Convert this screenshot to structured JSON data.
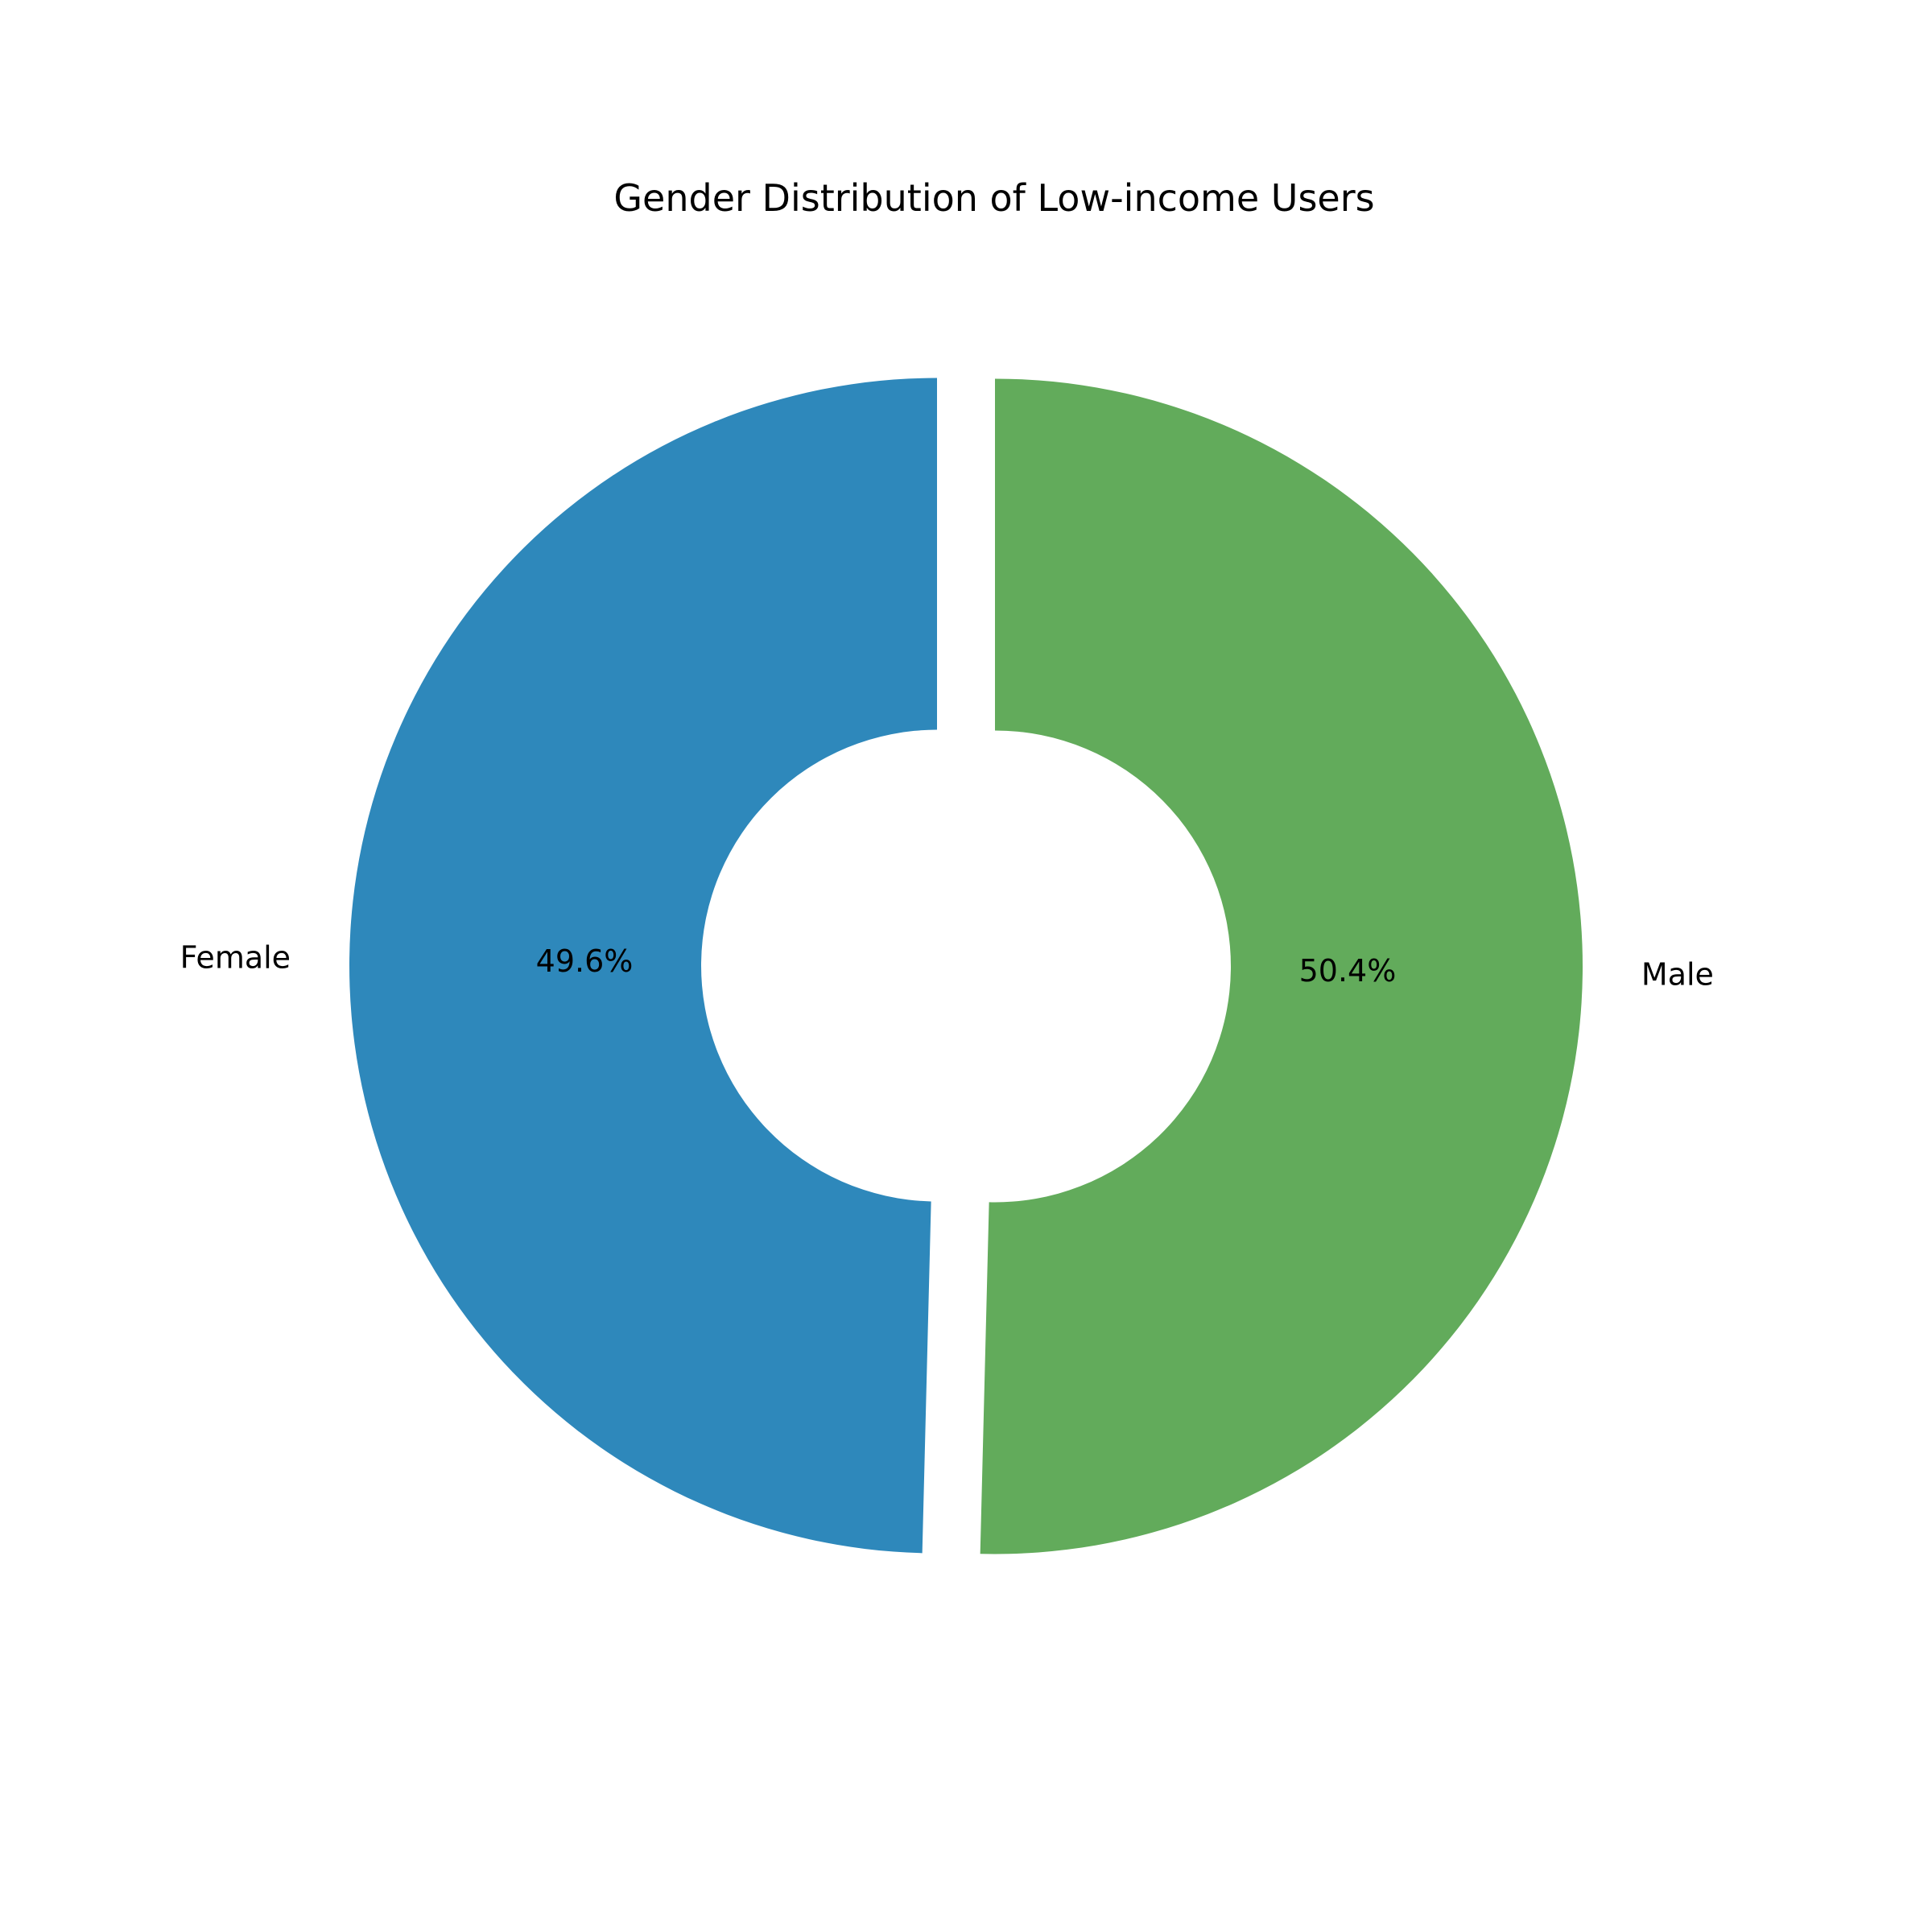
{
  "chart_data": {
    "type": "pie",
    "style": "donut",
    "title": "Gender Distribution of Low-income Users",
    "slices": [
      {
        "label": "Female",
        "percent": 49.6,
        "percent_label": "49.6%",
        "color": "#2e88bb"
      },
      {
        "label": "Male",
        "percent": 50.4,
        "percent_label": "50.4%",
        "color": "#62ab5b"
      }
    ],
    "start_angle_deg": 90,
    "direction": "counterclockwise",
    "exploded": true
  }
}
